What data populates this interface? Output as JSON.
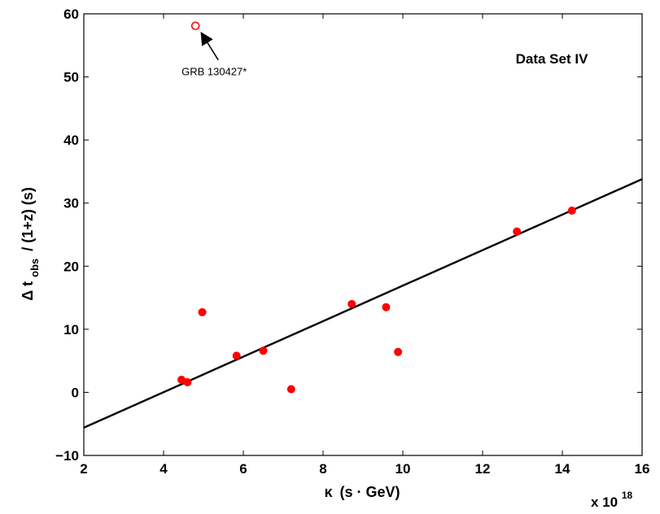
{
  "chart_data": {
    "type": "scatter",
    "title": "",
    "legend_text": "Data Set IV",
    "xlabel": "κ (s · GeV)",
    "xlabel_parts": {
      "greek": "κ",
      "rest": "(s · GeV)"
    },
    "x_multiplier": {
      "base": "x 10",
      "exponent": "18"
    },
    "ylabel": "Δ t_obs / (1+z) (s)",
    "ylabel_parts": {
      "delta_t": "Δ t",
      "sub": "obs",
      "rest": "/ (1+z) (s)"
    },
    "xlim": [
      2,
      16
    ],
    "ylim": [
      -10,
      60
    ],
    "xticks": [
      2,
      4,
      6,
      8,
      10,
      12,
      14,
      16
    ],
    "yticks": [
      -10,
      0,
      10,
      20,
      30,
      40,
      50,
      60
    ],
    "xtick_labels": [
      "2",
      "4",
      "6",
      "8",
      "10",
      "12",
      "14",
      "16"
    ],
    "ytick_labels": [
      "−10",
      "0",
      "10",
      "20",
      "30",
      "40",
      "50",
      "60"
    ],
    "grid": false,
    "series": [
      {
        "marker": "filled-circle",
        "color": "#ff0000",
        "points": [
          {
            "x": 4.45,
            "y": 2.0
          },
          {
            "x": 4.6,
            "y": 1.6
          },
          {
            "x": 4.97,
            "y": 12.7
          },
          {
            "x": 5.83,
            "y": 5.8
          },
          {
            "x": 6.5,
            "y": 6.6
          },
          {
            "x": 7.2,
            "y": 0.5
          },
          {
            "x": 8.72,
            "y": 14.0
          },
          {
            "x": 9.58,
            "y": 13.5
          },
          {
            "x": 9.88,
            "y": 6.4
          },
          {
            "x": 12.86,
            "y": 25.5
          },
          {
            "x": 14.24,
            "y": 28.8
          }
        ]
      },
      {
        "marker": "open-circle",
        "color": "#ff0000",
        "points": [
          {
            "x": 4.8,
            "y": 58.1
          }
        ]
      },
      {
        "type": "line",
        "color": "#000000",
        "points": [
          {
            "x": 2,
            "y": -5.6
          },
          {
            "x": 16,
            "y": 33.8
          }
        ]
      }
    ],
    "annotations": [
      {
        "text": "GRB 130427*",
        "target": {
          "x": 4.8,
          "y": 58.1
        }
      }
    ]
  }
}
